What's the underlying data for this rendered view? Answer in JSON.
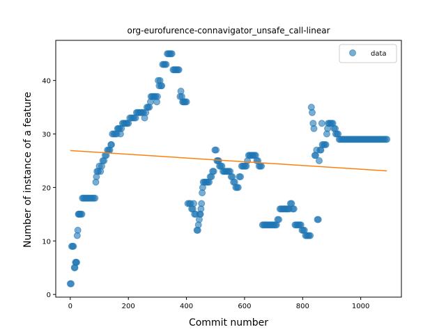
{
  "chart_data": {
    "type": "scatter",
    "title": "org-eurofurence-connavigator_unsafe_call-linear",
    "xlabel": "Commit number",
    "ylabel": "Number of instance of a feature",
    "xlim": [
      -50,
      1140
    ],
    "ylim": [
      -0.5,
      47.5
    ],
    "xticks": [
      0,
      200,
      400,
      600,
      800,
      1000
    ],
    "yticks": [
      0,
      10,
      20,
      30,
      40
    ],
    "grid": false,
    "legend_position": "top-right",
    "series": [
      {
        "name": "data",
        "kind": "scatter",
        "color": "#1f77b4",
        "alpha": 0.6,
        "points": [
          [
            0,
            2
          ],
          [
            3,
            2
          ],
          [
            5,
            9
          ],
          [
            8,
            9
          ],
          [
            11,
            9
          ],
          [
            14,
            5
          ],
          [
            16,
            5
          ],
          [
            18,
            6
          ],
          [
            20,
            6
          ],
          [
            22,
            6
          ],
          [
            24,
            11
          ],
          [
            26,
            12
          ],
          [
            28,
            15
          ],
          [
            30,
            15
          ],
          [
            33,
            15
          ],
          [
            36,
            15
          ],
          [
            40,
            15
          ],
          [
            42,
            18
          ],
          [
            46,
            18
          ],
          [
            50,
            18
          ],
          [
            55,
            18
          ],
          [
            60,
            18
          ],
          [
            65,
            18
          ],
          [
            70,
            18
          ],
          [
            75,
            18
          ],
          [
            80,
            18
          ],
          [
            85,
            18
          ],
          [
            88,
            21
          ],
          [
            90,
            22
          ],
          [
            92,
            23
          ],
          [
            96,
            23
          ],
          [
            100,
            24
          ],
          [
            104,
            23
          ],
          [
            108,
            24
          ],
          [
            112,
            25
          ],
          [
            116,
            25
          ],
          [
            120,
            26
          ],
          [
            124,
            26
          ],
          [
            128,
            27
          ],
          [
            132,
            27
          ],
          [
            136,
            27
          ],
          [
            140,
            28
          ],
          [
            142,
            28
          ],
          [
            145,
            30
          ],
          [
            150,
            30
          ],
          [
            155,
            30
          ],
          [
            160,
            30
          ],
          [
            163,
            31
          ],
          [
            166,
            31
          ],
          [
            170,
            31
          ],
          [
            173,
            30
          ],
          [
            176,
            31
          ],
          [
            180,
            32
          ],
          [
            184,
            32
          ],
          [
            188,
            32
          ],
          [
            192,
            32
          ],
          [
            196,
            32
          ],
          [
            200,
            32
          ],
          [
            205,
            33
          ],
          [
            210,
            33
          ],
          [
            215,
            33
          ],
          [
            220,
            33
          ],
          [
            225,
            33
          ],
          [
            228,
            34
          ],
          [
            232,
            34
          ],
          [
            236,
            34
          ],
          [
            240,
            34
          ],
          [
            244,
            34
          ],
          [
            248,
            34
          ],
          [
            252,
            34
          ],
          [
            256,
            33
          ],
          [
            260,
            34
          ],
          [
            264,
            35
          ],
          [
            268,
            35
          ],
          [
            272,
            35
          ],
          [
            276,
            36
          ],
          [
            278,
            37
          ],
          [
            282,
            37
          ],
          [
            286,
            37
          ],
          [
            290,
            37
          ],
          [
            294,
            37
          ],
          [
            298,
            36
          ],
          [
            300,
            37
          ],
          [
            303,
            40
          ],
          [
            306,
            39
          ],
          [
            309,
            40
          ],
          [
            312,
            39
          ],
          [
            315,
            39
          ],
          [
            318,
            43
          ],
          [
            322,
            43
          ],
          [
            326,
            43
          ],
          [
            330,
            43
          ],
          [
            334,
            45
          ],
          [
            338,
            45
          ],
          [
            342,
            45
          ],
          [
            346,
            45
          ],
          [
            350,
            45
          ],
          [
            354,
            42
          ],
          [
            358,
            42
          ],
          [
            362,
            42
          ],
          [
            366,
            42
          ],
          [
            370,
            42
          ],
          [
            374,
            42
          ],
          [
            378,
            37
          ],
          [
            381,
            38
          ],
          [
            384,
            37
          ],
          [
            387,
            36
          ],
          [
            390,
            36
          ],
          [
            393,
            36
          ],
          [
            396,
            36
          ],
          [
            400,
            36
          ],
          [
            405,
            17
          ],
          [
            410,
            17
          ],
          [
            414,
            17
          ],
          [
            418,
            16
          ],
          [
            422,
            16
          ],
          [
            425,
            17
          ],
          [
            428,
            15
          ],
          [
            432,
            15
          ],
          [
            436,
            12
          ],
          [
            439,
            12
          ],
          [
            441,
            13
          ],
          [
            444,
            14
          ],
          [
            446,
            15
          ],
          [
            448,
            15
          ],
          [
            450,
            16
          ],
          [
            452,
            17
          ],
          [
            454,
            19
          ],
          [
            456,
            20
          ],
          [
            458,
            21
          ],
          [
            462,
            21
          ],
          [
            466,
            21
          ],
          [
            470,
            21
          ],
          [
            474,
            21
          ],
          [
            478,
            21
          ],
          [
            482,
            22
          ],
          [
            486,
            22
          ],
          [
            490,
            23
          ],
          [
            494,
            23
          ],
          [
            498,
            27
          ],
          [
            502,
            27
          ],
          [
            505,
            25
          ],
          [
            508,
            25
          ],
          [
            511,
            25
          ],
          [
            514,
            24
          ],
          [
            518,
            24
          ],
          [
            522,
            24
          ],
          [
            526,
            23
          ],
          [
            530,
            23
          ],
          [
            534,
            23
          ],
          [
            538,
            23
          ],
          [
            542,
            23
          ],
          [
            546,
            23
          ],
          [
            550,
            23
          ],
          [
            554,
            22
          ],
          [
            558,
            22
          ],
          [
            562,
            21
          ],
          [
            566,
            21
          ],
          [
            570,
            20
          ],
          [
            574,
            20
          ],
          [
            578,
            20
          ],
          [
            582,
            22
          ],
          [
            586,
            22
          ],
          [
            590,
            24
          ],
          [
            594,
            24
          ],
          [
            598,
            24
          ],
          [
            602,
            24
          ],
          [
            606,
            24
          ],
          [
            610,
            25
          ],
          [
            614,
            26
          ],
          [
            618,
            26
          ],
          [
            622,
            26
          ],
          [
            626,
            26
          ],
          [
            630,
            26
          ],
          [
            634,
            26
          ],
          [
            638,
            26
          ],
          [
            642,
            25
          ],
          [
            646,
            25
          ],
          [
            650,
            24
          ],
          [
            654,
            24
          ],
          [
            658,
            24
          ],
          [
            662,
            13
          ],
          [
            666,
            13
          ],
          [
            670,
            13
          ],
          [
            674,
            13
          ],
          [
            678,
            13
          ],
          [
            682,
            13
          ],
          [
            686,
            13
          ],
          [
            690,
            13
          ],
          [
            694,
            13
          ],
          [
            698,
            13
          ],
          [
            702,
            13
          ],
          [
            706,
            13
          ],
          [
            710,
            13
          ],
          [
            714,
            14
          ],
          [
            718,
            14
          ],
          [
            722,
            16
          ],
          [
            726,
            16
          ],
          [
            730,
            16
          ],
          [
            734,
            16
          ],
          [
            738,
            16
          ],
          [
            742,
            16
          ],
          [
            746,
            16
          ],
          [
            750,
            16
          ],
          [
            754,
            16
          ],
          [
            758,
            17
          ],
          [
            762,
            17
          ],
          [
            766,
            16
          ],
          [
            770,
            16
          ],
          [
            774,
            13
          ],
          [
            778,
            13
          ],
          [
            782,
            13
          ],
          [
            786,
            13
          ],
          [
            790,
            13
          ],
          [
            794,
            13
          ],
          [
            798,
            12
          ],
          [
            802,
            12
          ],
          [
            806,
            12
          ],
          [
            810,
            11
          ],
          [
            814,
            11
          ],
          [
            818,
            11
          ],
          [
            822,
            11
          ],
          [
            826,
            11
          ],
          [
            830,
            35
          ],
          [
            833,
            34
          ],
          [
            836,
            32
          ],
          [
            839,
            31
          ],
          [
            842,
            26
          ],
          [
            845,
            26
          ],
          [
            848,
            27
          ],
          [
            851,
            14
          ],
          [
            854,
            14
          ],
          [
            857,
            25
          ],
          [
            860,
            27
          ],
          [
            863,
            27
          ],
          [
            866,
            32
          ],
          [
            868,
            28
          ],
          [
            872,
            28
          ],
          [
            876,
            28
          ],
          [
            880,
            28
          ],
          [
            883,
            30
          ],
          [
            886,
            31
          ],
          [
            888,
            32
          ],
          [
            892,
            32
          ],
          [
            896,
            32
          ],
          [
            900,
            32
          ],
          [
            904,
            32
          ],
          [
            908,
            31
          ],
          [
            912,
            31
          ],
          [
            914,
            30
          ],
          [
            918,
            30
          ],
          [
            922,
            30
          ],
          [
            926,
            29
          ],
          [
            930,
            29
          ],
          [
            935,
            29
          ],
          [
            940,
            29
          ],
          [
            945,
            29
          ],
          [
            950,
            29
          ],
          [
            955,
            29
          ],
          [
            960,
            29
          ],
          [
            965,
            29
          ],
          [
            970,
            29
          ],
          [
            975,
            29
          ],
          [
            980,
            29
          ],
          [
            985,
            29
          ],
          [
            990,
            29
          ],
          [
            995,
            29
          ],
          [
            1000,
            29
          ],
          [
            1005,
            29
          ],
          [
            1010,
            29
          ],
          [
            1015,
            29
          ],
          [
            1020,
            29
          ],
          [
            1025,
            29
          ],
          [
            1030,
            29
          ],
          [
            1035,
            29
          ],
          [
            1040,
            29
          ],
          [
            1045,
            29
          ],
          [
            1050,
            29
          ],
          [
            1055,
            29
          ],
          [
            1060,
            29
          ],
          [
            1065,
            29
          ],
          [
            1070,
            29
          ],
          [
            1075,
            29
          ],
          [
            1080,
            29
          ],
          [
            1085,
            29
          ],
          [
            1090,
            29
          ]
        ]
      },
      {
        "kind": "line",
        "color": "#ff7f0e",
        "x": [
          0,
          1090
        ],
        "y": [
          26.9,
          23.1
        ]
      }
    ]
  }
}
